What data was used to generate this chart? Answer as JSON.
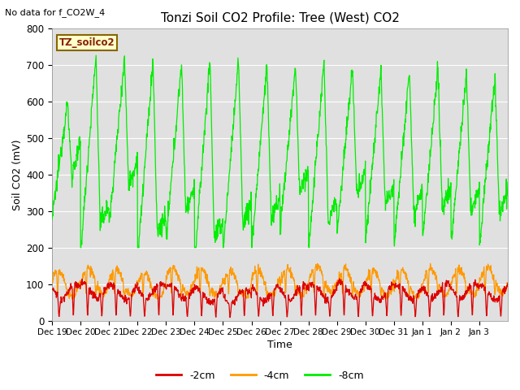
{
  "title": "Tonzi Soil CO2 Profile: Tree (West) CO2",
  "no_data_text": "No data for f_CO2W_4",
  "legend_box_text": "TZ_soilco2",
  "xlabel": "Time",
  "ylabel": "Soil CO2 (mV)",
  "ylim": [
    0,
    800
  ],
  "yticks": [
    0,
    100,
    200,
    300,
    400,
    500,
    600,
    700,
    800
  ],
  "xtick_labels": [
    "Dec 19",
    "Dec 20",
    "Dec 21",
    "Dec 22",
    "Dec 23",
    "Dec 24",
    "Dec 25",
    "Dec 26",
    "Dec 27",
    "Dec 28",
    "Dec 29",
    "Dec 30",
    "Dec 31",
    "Jan 1",
    "Jan 2",
    "Jan 3"
  ],
  "color_2cm": "#dd0000",
  "color_4cm": "#ff9900",
  "color_8cm": "#00ee00",
  "bg_color": "#e0e0e0",
  "fig_bg": "#ffffff",
  "legend_label_2cm": "-2cm",
  "legend_label_4cm": "-4cm",
  "legend_label_8cm": "-8cm",
  "n_days": 16,
  "n_pts_per_day": 96
}
